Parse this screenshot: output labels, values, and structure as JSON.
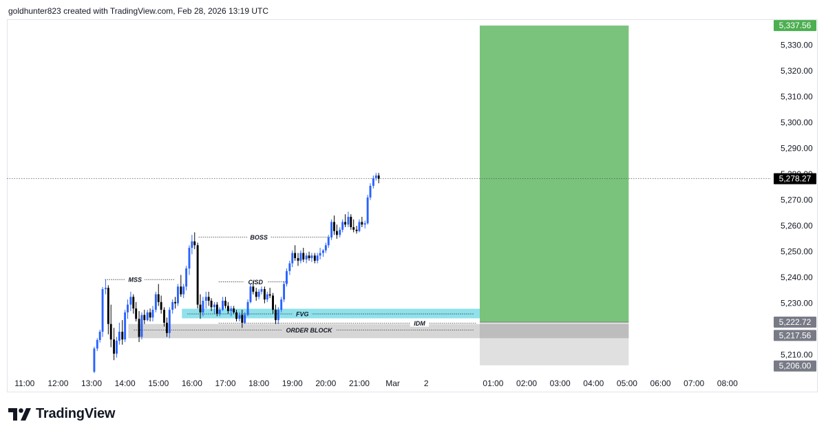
{
  "header": {
    "text": "goldhunter823 created with TradingView.com, Feb 28, 2026 13:19 UTC"
  },
  "brand": {
    "name": "TradingView",
    "logo_icon": "tradingview-logo-icon"
  },
  "chart_data": {
    "type": "candlestick",
    "time_ticks": [
      "11:00",
      "12:00",
      "13:00",
      "14:00",
      "15:00",
      "16:00",
      "17:00",
      "18:00",
      "19:00",
      "20:00",
      "21:00",
      "Mar",
      "2",
      "01:00",
      "02:00",
      "03:00",
      "04:00",
      "05:00",
      "06:00",
      "07:00",
      "08:00"
    ],
    "price_ticks": [
      "5,330.00",
      "5,320.00",
      "5,310.00",
      "5,300.00",
      "5,290.00",
      "5,280.00",
      "5,270.00",
      "5,260.00",
      "5,250.00",
      "5,240.00",
      "5,230.00",
      "5,210.00"
    ],
    "price_tick_values": [
      5330,
      5320,
      5310,
      5300,
      5290,
      5280,
      5270,
      5260,
      5250,
      5240,
      5230,
      5210
    ],
    "time_tick_values": [
      11,
      12,
      13,
      14,
      15,
      16,
      17,
      18,
      19,
      20,
      21,
      22,
      23,
      25,
      26,
      27,
      28,
      29,
      30,
      31,
      32
    ],
    "ylim": [
      5203,
      5340
    ],
    "xlim": [
      10.47,
      33.3
    ],
    "price_tags": [
      {
        "label": "5,337.56",
        "value": 5337.56,
        "color": "#4caf50"
      },
      {
        "label": "5,278.27",
        "value": 5278.27,
        "color": "#000000"
      },
      {
        "label": "5,222.72",
        "value": 5222.72,
        "color": "#787b86"
      },
      {
        "label": "5,217.56",
        "value": 5217.56,
        "color": "#787b86"
      },
      {
        "label": "5,206.00",
        "value": 5206.0,
        "color": "#787b86"
      }
    ],
    "current_price": 5278.27,
    "position": {
      "type": "long",
      "entry": 5222.72,
      "target": 5337.56,
      "stop": 5206.0,
      "time_start": 24.6,
      "time_end": 29.05,
      "profit_color": "#4caf50",
      "loss_color": "#e0e0e0"
    },
    "zones": [
      {
        "label": "FVG",
        "low": 5224.2,
        "high": 5227.9,
        "time_start": 15.7,
        "time_end": 24.6,
        "color": "#8fe1eb",
        "line_price": 5225.9,
        "label_time": 19.3
      },
      {
        "label": "ORDER BLOCK",
        "low": 5216.5,
        "high": 5222.0,
        "time_start": 14.1,
        "time_end": 24.6,
        "color": "#d6d6d6",
        "line_price": 5219.7,
        "label_time": 19.5
      }
    ],
    "levels": [
      {
        "label": "MSS",
        "price": 5239.2,
        "time_start": 13.4,
        "time_end": 15.5,
        "label_time": 14.3
      },
      {
        "label": "CISD",
        "price": 5238.3,
        "time_start": 16.8,
        "time_end": 18.9,
        "label_time": 17.9
      },
      {
        "label": "BOSS",
        "price": 5255.6,
        "time_start": 16.2,
        "time_end": 20.2,
        "label_time": 18.0
      },
      {
        "label": "IDM",
        "price": 5222.3,
        "time_start": 16.8,
        "time_end": 24.5,
        "label_time": 22.8
      }
    ],
    "bull_color": "#2962ff",
    "bear_color": "#000000",
    "candles": [
      [
        13.08,
        5203.5,
        5213.2,
        5203.0,
        5212.5
      ],
      [
        13.17,
        5212.5,
        5216.5,
        5211.5,
        5215.8
      ],
      [
        13.25,
        5215.8,
        5219.8,
        5214.8,
        5219.0
      ],
      [
        13.33,
        5219.0,
        5236.3,
        5217.0,
        5235.5
      ],
      [
        13.42,
        5235.5,
        5239.2,
        5233.5,
        5236.0
      ],
      [
        13.5,
        5236.0,
        5237.0,
        5218.0,
        5222.0
      ],
      [
        13.58,
        5222.0,
        5229.5,
        5213.0,
        5216.0
      ],
      [
        13.67,
        5216.0,
        5220.5,
        5208.0,
        5210.5
      ],
      [
        13.75,
        5210.5,
        5217.0,
        5209.0,
        5215.5
      ],
      [
        13.83,
        5215.5,
        5222.5,
        5214.0,
        5219.0
      ],
      [
        13.92,
        5219.0,
        5223.5,
        5214.0,
        5216.0
      ],
      [
        14.0,
        5216.0,
        5227.5,
        5215.0,
        5226.5
      ],
      [
        14.08,
        5226.5,
        5231.5,
        5224.0,
        5229.5
      ],
      [
        14.17,
        5229.5,
        5234.5,
        5227.0,
        5232.5
      ],
      [
        14.25,
        5232.5,
        5233.5,
        5226.0,
        5228.0
      ],
      [
        14.33,
        5228.0,
        5230.5,
        5223.0,
        5224.0
      ],
      [
        14.42,
        5224.0,
        5227.0,
        5215.0,
        5217.0
      ],
      [
        14.5,
        5217.0,
        5226.5,
        5216.0,
        5225.5
      ],
      [
        14.58,
        5225.5,
        5227.5,
        5222.0,
        5223.5
      ],
      [
        14.67,
        5223.5,
        5227.5,
        5223.0,
        5226.5
      ],
      [
        14.75,
        5226.5,
        5228.0,
        5223.0,
        5224.5
      ],
      [
        14.83,
        5224.5,
        5229.0,
        5223.0,
        5227.5
      ],
      [
        14.92,
        5227.5,
        5234.5,
        5226.5,
        5233.5
      ],
      [
        15.0,
        5233.5,
        5237.5,
        5229.0,
        5230.5
      ],
      [
        15.08,
        5230.5,
        5233.0,
        5226.0,
        5227.5
      ],
      [
        15.17,
        5227.5,
        5228.5,
        5221.0,
        5222.5
      ],
      [
        15.25,
        5222.5,
        5224.5,
        5217.0,
        5218.5
      ],
      [
        15.33,
        5218.5,
        5228.5,
        5216.5,
        5227.5
      ],
      [
        15.42,
        5227.5,
        5231.5,
        5226.0,
        5230.5
      ],
      [
        15.5,
        5230.5,
        5232.5,
        5228.0,
        5230.0
      ],
      [
        15.58,
        5230.0,
        5237.5,
        5229.0,
        5236.5
      ],
      [
        15.67,
        5236.5,
        5241.0,
        5232.5,
        5233.5
      ],
      [
        15.75,
        5233.5,
        5237.5,
        5232.0,
        5236.5
      ],
      [
        15.83,
        5236.5,
        5244.5,
        5235.0,
        5243.5
      ],
      [
        15.92,
        5243.5,
        5252.5,
        5241.0,
        5251.5
      ],
      [
        16.0,
        5251.5,
        5256.5,
        5249.0,
        5254.0
      ],
      [
        16.08,
        5254.0,
        5257.5,
        5251.0,
        5252.5
      ],
      [
        16.17,
        5252.5,
        5253.5,
        5228.0,
        5229.5
      ],
      [
        16.25,
        5229.5,
        5233.5,
        5224.0,
        5226.5
      ],
      [
        16.33,
        5226.5,
        5232.5,
        5225.0,
        5231.0
      ],
      [
        16.42,
        5231.0,
        5234.5,
        5228.0,
        5232.5
      ],
      [
        16.5,
        5232.5,
        5234.5,
        5229.0,
        5231.0
      ],
      [
        16.58,
        5231.0,
        5232.0,
        5227.0,
        5228.5
      ],
      [
        16.67,
        5228.5,
        5230.5,
        5226.0,
        5229.5
      ],
      [
        16.75,
        5229.5,
        5230.5,
        5225.0,
        5226.0
      ],
      [
        16.83,
        5226.0,
        5228.5,
        5225.0,
        5227.5
      ],
      [
        16.92,
        5227.5,
        5232.5,
        5227.0,
        5231.0
      ],
      [
        17.0,
        5231.0,
        5232.5,
        5228.0,
        5229.0
      ],
      [
        17.08,
        5229.0,
        5230.5,
        5226.0,
        5227.0
      ],
      [
        17.17,
        5227.0,
        5229.0,
        5225.0,
        5228.0
      ],
      [
        17.25,
        5228.0,
        5229.0,
        5226.0,
        5226.5
      ],
      [
        17.33,
        5226.5,
        5227.5,
        5223.0,
        5224.0
      ],
      [
        17.42,
        5224.0,
        5226.5,
        5223.0,
        5225.5
      ],
      [
        17.5,
        5225.5,
        5227.5,
        5220.5,
        5222.5
      ],
      [
        17.58,
        5222.5,
        5226.5,
        5222.0,
        5225.5
      ],
      [
        17.67,
        5225.5,
        5231.5,
        5225.0,
        5230.5
      ],
      [
        17.75,
        5230.5,
        5237.5,
        5230.0,
        5236.5
      ],
      [
        17.83,
        5236.5,
        5238.5,
        5233.5,
        5234.5
      ],
      [
        17.92,
        5234.5,
        5236.0,
        5231.0,
        5232.5
      ],
      [
        18.0,
        5232.5,
        5235.5,
        5231.5,
        5234.5
      ],
      [
        18.08,
        5234.5,
        5236.5,
        5233.5,
        5235.5
      ],
      [
        18.17,
        5235.5,
        5236.5,
        5230.0,
        5231.5
      ],
      [
        18.25,
        5231.5,
        5234.5,
        5230.5,
        5233.5
      ],
      [
        18.33,
        5233.5,
        5236.0,
        5232.0,
        5233.0
      ],
      [
        18.42,
        5233.0,
        5234.0,
        5226.0,
        5227.5
      ],
      [
        18.5,
        5227.5,
        5229.5,
        5222.0,
        5223.5
      ],
      [
        18.58,
        5223.5,
        5228.5,
        5222.0,
        5227.5
      ],
      [
        18.67,
        5227.5,
        5232.5,
        5226.5,
        5231.5
      ],
      [
        18.75,
        5231.5,
        5238.5,
        5230.5,
        5237.5
      ],
      [
        18.83,
        5237.5,
        5243.5,
        5236.5,
        5242.5
      ],
      [
        18.92,
        5242.5,
        5246.5,
        5241.0,
        5245.5
      ],
      [
        19.0,
        5245.5,
        5250.5,
        5244.0,
        5249.5
      ],
      [
        19.08,
        5249.5,
        5252.5,
        5246.5,
        5247.5
      ],
      [
        19.17,
        5247.5,
        5249.5,
        5244.5,
        5246.5
      ],
      [
        19.25,
        5246.5,
        5250.5,
        5245.5,
        5249.5
      ],
      [
        19.33,
        5249.5,
        5251.5,
        5246.0,
        5247.0
      ],
      [
        19.42,
        5247.0,
        5249.5,
        5245.5,
        5248.5
      ],
      [
        19.5,
        5248.5,
        5250.0,
        5246.5,
        5247.5
      ],
      [
        19.58,
        5247.5,
        5249.5,
        5246.0,
        5248.5
      ],
      [
        19.67,
        5248.5,
        5249.5,
        5245.5,
        5246.5
      ],
      [
        19.75,
        5246.5,
        5249.5,
        5245.5,
        5248.5
      ],
      [
        19.83,
        5248.5,
        5251.5,
        5247.0,
        5249.5
      ],
      [
        19.92,
        5249.5,
        5251.0,
        5248.0,
        5250.5
      ],
      [
        20.0,
        5250.5,
        5253.5,
        5249.5,
        5252.5
      ],
      [
        20.08,
        5252.5,
        5256.5,
        5251.5,
        5255.5
      ],
      [
        20.17,
        5255.5,
        5262.5,
        5254.5,
        5261.5
      ],
      [
        20.25,
        5261.5,
        5264.0,
        5256.5,
        5258.0
      ],
      [
        20.33,
        5258.0,
        5260.5,
        5255.0,
        5256.5
      ],
      [
        20.42,
        5256.5,
        5259.5,
        5255.5,
        5258.5
      ],
      [
        20.5,
        5258.5,
        5262.5,
        5257.5,
        5261.5
      ],
      [
        20.58,
        5261.5,
        5264.5,
        5259.5,
        5260.5
      ],
      [
        20.67,
        5260.5,
        5265.5,
        5259.5,
        5263.5
      ],
      [
        20.75,
        5263.5,
        5264.5,
        5258.5,
        5259.5
      ],
      [
        20.83,
        5259.5,
        5262.5,
        5257.5,
        5258.5
      ],
      [
        20.92,
        5258.5,
        5260.0,
        5257.0,
        5258.0
      ],
      [
        21.0,
        5258.0,
        5262.5,
        5257.5,
        5261.5
      ],
      [
        21.08,
        5261.5,
        5263.5,
        5259.5,
        5260.5
      ],
      [
        21.17,
        5260.5,
        5262.0,
        5259.0,
        5261.0
      ],
      [
        21.25,
        5261.0,
        5272.0,
        5260.5,
        5271.0
      ],
      [
        21.33,
        5271.0,
        5276.5,
        5270.0,
        5275.5
      ],
      [
        21.42,
        5275.5,
        5279.5,
        5274.5,
        5278.5
      ],
      [
        21.5,
        5278.5,
        5280.5,
        5277.5,
        5279.5
      ],
      [
        21.58,
        5279.5,
        5280.5,
        5276.5,
        5278.27
      ]
    ]
  }
}
